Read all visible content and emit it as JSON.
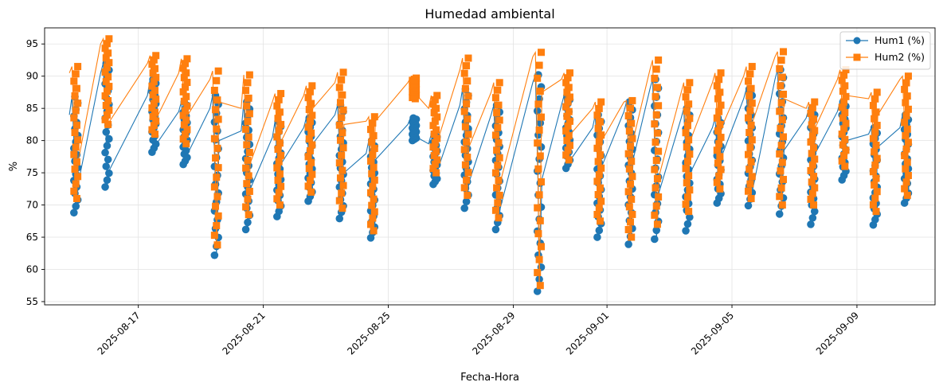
{
  "chart_data": {
    "type": "line",
    "title": "Humedad ambiental",
    "xlabel": "Fecha-Hora",
    "ylabel": "%",
    "xlim": [
      "2025-08-14T00:00",
      "2025-09-11T12:00"
    ],
    "ylim": [
      54.5,
      97.5
    ],
    "yticks": [
      55,
      60,
      65,
      70,
      75,
      80,
      85,
      90,
      95
    ],
    "xticks": [
      "2025-08-17",
      "2025-08-21",
      "2025-08-25",
      "2025-08-29",
      "2025-09-01",
      "2025-09-05",
      "2025-09-09"
    ],
    "grid": true,
    "legend_position": "top-right",
    "series": [
      {
        "name": "Hum1 (%)",
        "color": "#1f77b4",
        "marker": "circle",
        "daily": [
          [
            "2025-08-15T00:00",
            68.8,
            86.8,
            84.0,
            73.5
          ],
          [
            "2025-08-16T00:00",
            72.8,
            92.0,
            90.5,
            75.5
          ],
          [
            "2025-08-17T12:00",
            78.2,
            89.5,
            87.0,
            79.5
          ],
          [
            "2025-08-18T12:00",
            76.3,
            86.0,
            84.5,
            78.0
          ],
          [
            "2025-08-19T12:00",
            62.2,
            87.0,
            85.0,
            80.0
          ],
          [
            "2025-08-20T12:00",
            66.2,
            86.0,
            81.5,
            72.5
          ],
          [
            "2025-08-21T12:00",
            68.2,
            83.0,
            80.5,
            76.5
          ],
          [
            "2025-08-22T12:00",
            70.6,
            83.5,
            82.0,
            79.5
          ],
          [
            "2025-08-23T12:00",
            67.9,
            85.5,
            84.0,
            75.0
          ],
          [
            "2025-08-24T12:00",
            64.9,
            80.0,
            78.0,
            77.0
          ],
          [
            "2025-08-25T20:00",
            80.0,
            83.5,
            82.5,
            80.5
          ],
          [
            "2025-08-26T12:00",
            73.2,
            81.0,
            79.5,
            75.5
          ],
          [
            "2025-08-27T12:00",
            69.5,
            88.0,
            85.5,
            73.5
          ],
          [
            "2025-08-28T12:00",
            66.2,
            85.5,
            84.0,
            69.5
          ],
          [
            "2025-08-29T20:00",
            56.6,
            90.2,
            89.0,
            74.0
          ],
          [
            "2025-08-30T18:00",
            75.7,
            87.0,
            85.5,
            77.0
          ],
          [
            "2025-08-31T18:00",
            65.0,
            84.0,
            82.0,
            76.0
          ],
          [
            "2025-09-01T18:00",
            63.9,
            86.0,
            84.5,
            77.0
          ],
          [
            "2025-09-02T14:00",
            64.7,
            89.5,
            88.0,
            72.0
          ],
          [
            "2025-09-03T14:00",
            66.0,
            85.0,
            83.5,
            75.0
          ],
          [
            "2025-09-04T14:00",
            70.3,
            83.5,
            82.0,
            77.5
          ],
          [
            "2025-09-05T14:00",
            69.9,
            88.0,
            86.5,
            72.5
          ],
          [
            "2025-09-06T14:00",
            68.6,
            91.0,
            89.5,
            78.5
          ],
          [
            "2025-09-07T14:00",
            67.0,
            85.0,
            83.5,
            78.0
          ],
          [
            "2025-09-08T14:00",
            73.9,
            86.0,
            84.5,
            80.0
          ],
          [
            "2025-09-09T14:00",
            66.9,
            82.0,
            81.0,
            79.0
          ],
          [
            "2025-09-10T14:00",
            70.3,
            84.0,
            82.0,
            75.0
          ]
        ]
      },
      {
        "name": "Hum2 (%)",
        "color": "#ff7f0e",
        "marker": "square",
        "daily": [
          [
            "2025-08-15T00:00",
            71.0,
            91.5,
            90.5,
            77.0
          ],
          [
            "2025-08-16T00:00",
            82.5,
            95.8,
            95.0,
            83.0
          ],
          [
            "2025-08-17T12:00",
            81.0,
            93.2,
            92.0,
            83.5
          ],
          [
            "2025-08-18T12:00",
            79.5,
            92.7,
            90.5,
            84.0
          ],
          [
            "2025-08-19T12:00",
            63.8,
            90.8,
            89.5,
            86.0
          ],
          [
            "2025-08-20T12:00",
            68.5,
            90.2,
            85.0,
            76.5
          ],
          [
            "2025-08-21T12:00",
            70.0,
            87.3,
            86.0,
            80.0
          ],
          [
            "2025-08-22T12:00",
            72.0,
            88.5,
            87.0,
            85.0
          ],
          [
            "2025-08-23T12:00",
            69.5,
            90.6,
            89.0,
            82.5
          ],
          [
            "2025-08-24T12:00",
            66.0,
            83.7,
            83.0,
            83.0
          ],
          [
            "2025-08-25T20:00",
            86.5,
            89.7,
            89.0,
            87.0
          ],
          [
            "2025-08-26T12:00",
            75.0,
            87.0,
            85.0,
            80.0
          ],
          [
            "2025-08-27T12:00",
            71.5,
            92.8,
            91.0,
            79.0
          ],
          [
            "2025-08-28T12:00",
            68.0,
            89.0,
            87.5,
            73.5
          ],
          [
            "2025-08-29T20:00",
            57.5,
            93.7,
            93.0,
            87.5
          ],
          [
            "2025-08-30T18:00",
            77.0,
            90.5,
            89.5,
            81.0
          ],
          [
            "2025-08-31T18:00",
            67.5,
            86.0,
            85.0,
            80.0
          ],
          [
            "2025-09-01T18:00",
            65.0,
            86.2,
            86.0,
            80.0
          ],
          [
            "2025-09-02T14:00",
            67.0,
            92.5,
            91.0,
            74.5
          ],
          [
            "2025-09-03T14:00",
            69.0,
            89.0,
            87.5,
            80.0
          ],
          [
            "2025-09-04T14:00",
            72.5,
            90.5,
            89.0,
            82.0
          ],
          [
            "2025-09-05T14:00",
            71.0,
            91.5,
            90.0,
            83.0
          ],
          [
            "2025-09-06T14:00",
            70.0,
            93.8,
            93.0,
            86.5
          ],
          [
            "2025-09-07T14:00",
            70.0,
            86.0,
            85.0,
            82.0
          ],
          [
            "2025-09-08T14:00",
            76.0,
            91.0,
            89.5,
            87.0
          ],
          [
            "2025-09-09T14:00",
            69.0,
            87.5,
            86.5,
            84.0
          ],
          [
            "2025-09-10T14:00",
            71.5,
            90.0,
            89.5,
            82.0
          ]
        ]
      }
    ]
  }
}
